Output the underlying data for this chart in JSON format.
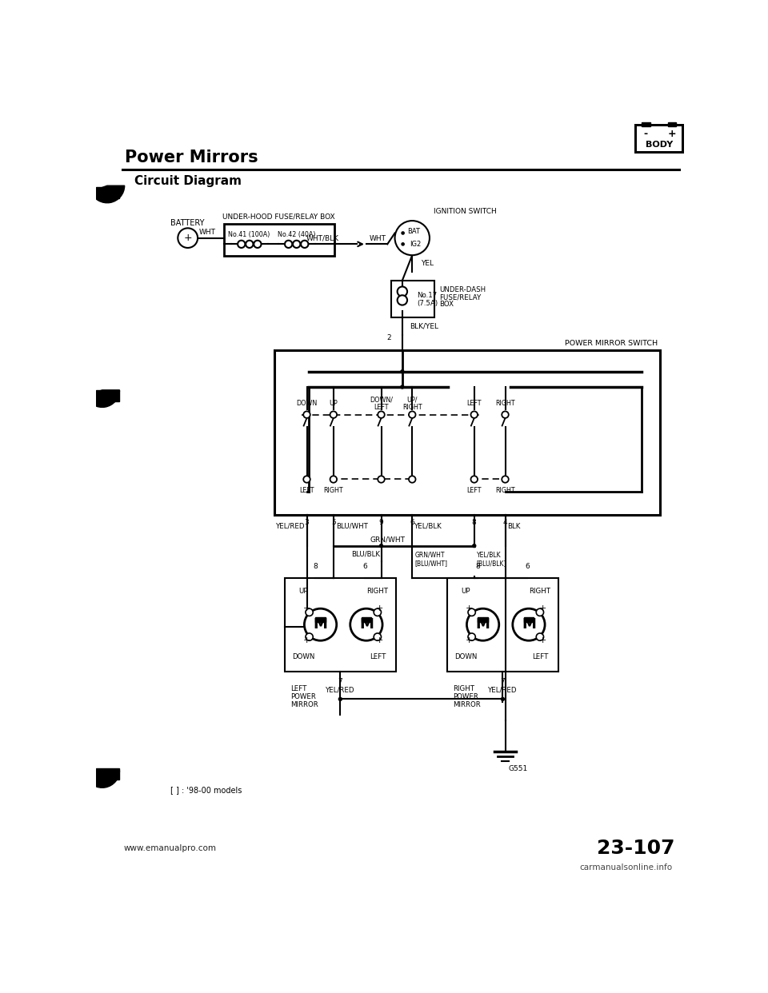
{
  "title": "Power Mirrors",
  "subtitle": "Circuit Diagram",
  "bg_color": "#ffffff",
  "footer_left": "www.emanualpro.com",
  "footer_right": "23-107",
  "footer_watermark": "carmanualsonline.info",
  "footnote": "[ ] : '98-00 models",
  "ground_label": "G551",
  "battery_label": "BATTERY",
  "underhood_label": "UNDER-HOOD FUSE/RELAY BOX",
  "fuse1_label": "No.41 (100A)",
  "fuse2_label": "No.42 (40A)",
  "ignition_label": "IGNITION SWITCH",
  "underdash_label1": "UNDER-DASH",
  "underdash_label2": "FUSE/RELAY",
  "underdash_label3": "BOX",
  "underdash_fuse": "No.17\n(7.5A)",
  "pms_label": "POWER MIRROR SWITCH",
  "wire_wht": "WHT",
  "wire_whtblk": "WHT/BLK",
  "wire_yel": "YEL",
  "wire_blkyel": "BLK/YEL",
  "wire_yelred": "YEL/RED",
  "wire_bluwht": "BLU/WHT",
  "wire_yelblk": "YEL/BLK",
  "wire_blk": "BLK",
  "wire_grn": "GRN/WHT",
  "wire_blublk": "BLU/BLK",
  "wire_grnwht_bracket": "GRN/WHT\n[BLU/WHT]",
  "wire_yelblk_bracket": "YEL/BLK\n[BLU/BLK]",
  "bat_label": "BAT",
  "ig2_label": "IG2",
  "left_mirror_label": "LEFT\nPOWER\nMIRROR",
  "right_mirror_label": "RIGHT\nPOWER\nMIRROR",
  "motor_label": "M",
  "pin2": "2",
  "pin3": "3",
  "pin4": "4",
  "pin5": "5",
  "pin6": "6",
  "pin7": "7",
  "pin8": "8",
  "pin9": "9"
}
